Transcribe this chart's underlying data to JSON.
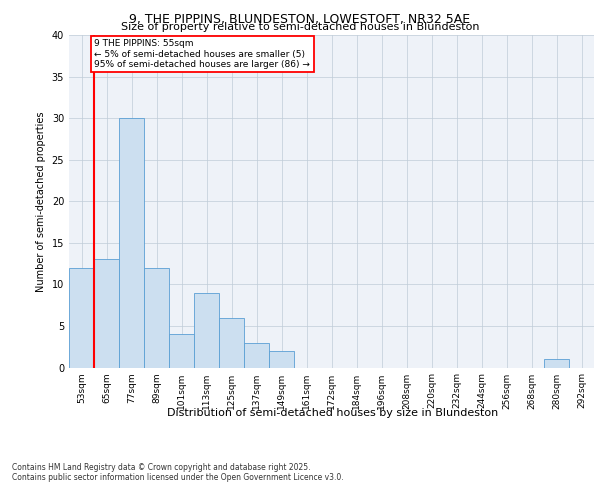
{
  "title": "9, THE PIPPINS, BLUNDESTON, LOWESTOFT, NR32 5AE",
  "subtitle": "Size of property relative to semi-detached houses in Blundeston",
  "xlabel": "Distribution of semi-detached houses by size in Blundeston",
  "ylabel": "Number of semi-detached properties",
  "bins": [
    "53sqm",
    "65sqm",
    "77sqm",
    "89sqm",
    "101sqm",
    "113sqm",
    "125sqm",
    "137sqm",
    "149sqm",
    "161sqm",
    "172sqm",
    "184sqm",
    "196sqm",
    "208sqm",
    "220sqm",
    "232sqm",
    "244sqm",
    "256sqm",
    "268sqm",
    "280sqm",
    "292sqm"
  ],
  "values": [
    12,
    13,
    30,
    12,
    4,
    9,
    6,
    3,
    2,
    0,
    0,
    0,
    0,
    0,
    0,
    0,
    0,
    0,
    0,
    1,
    0
  ],
  "bar_color": "#ccdff0",
  "bar_edge_color": "#5a9fd4",
  "annotation_title": "9 THE PIPPINS: 55sqm",
  "annotation_line1": "← 5% of semi-detached houses are smaller (5)",
  "annotation_line2": "95% of semi-detached houses are larger (86) →",
  "footnote1": "Contains HM Land Registry data © Crown copyright and database right 2025.",
  "footnote2": "Contains public sector information licensed under the Open Government Licence v3.0.",
  "ylim": [
    0,
    40
  ],
  "yticks": [
    0,
    5,
    10,
    15,
    20,
    25,
    30,
    35,
    40
  ],
  "bg_color": "#eef2f8",
  "fig_bg_color": "#ffffff",
  "title_fontsize": 9,
  "subtitle_fontsize": 8,
  "tick_fontsize": 6.5,
  "ytick_fontsize": 7,
  "ylabel_fontsize": 7,
  "xlabel_fontsize": 8,
  "footnote_fontsize": 5.5,
  "annot_fontsize": 6.5
}
